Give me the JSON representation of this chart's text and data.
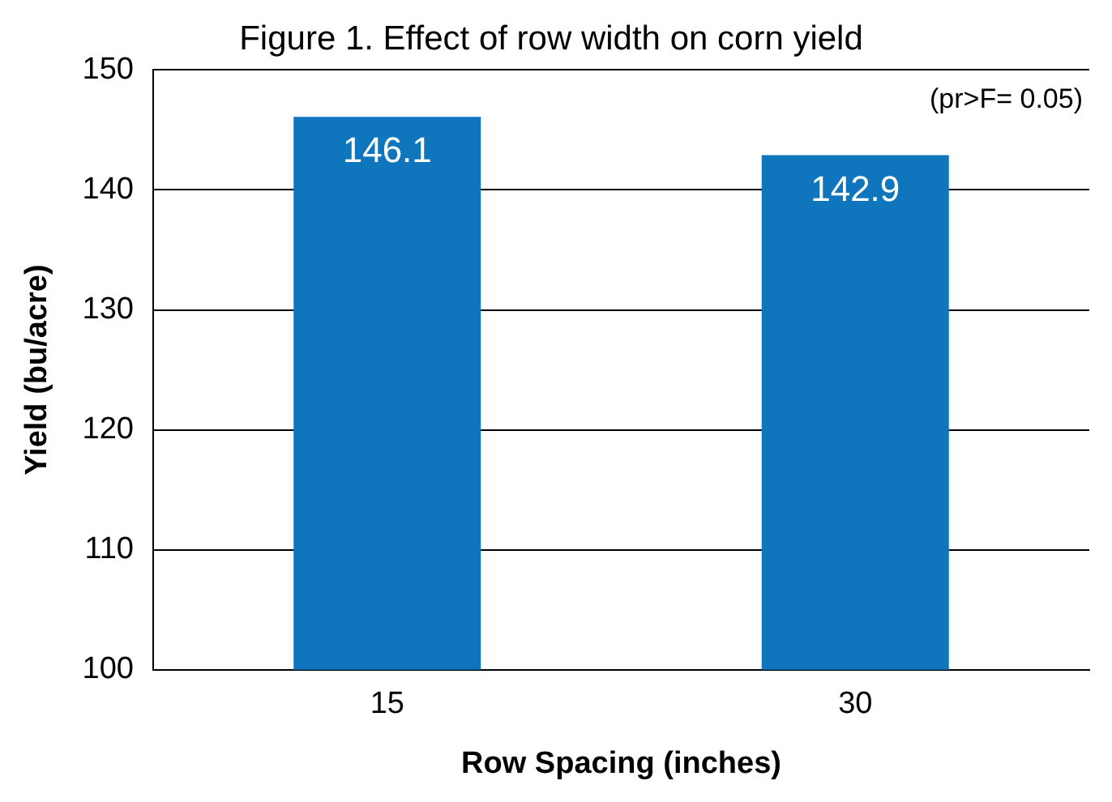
{
  "chart_data": {
    "type": "bar",
    "title": "Figure 1. Effect of row width on corn yield",
    "xlabel": "Row Spacing (inches)",
    "ylabel": "Yield (bu/acre)",
    "categories": [
      "15",
      "30"
    ],
    "values": [
      146.1,
      142.9
    ],
    "color": "#0f75bc",
    "ylim": [
      100,
      150
    ],
    "yticks": [
      100,
      110,
      120,
      130,
      140,
      150
    ],
    "grid": "y",
    "data_labels": true,
    "annotations": [
      "(pr>F= 0.05)"
    ]
  }
}
